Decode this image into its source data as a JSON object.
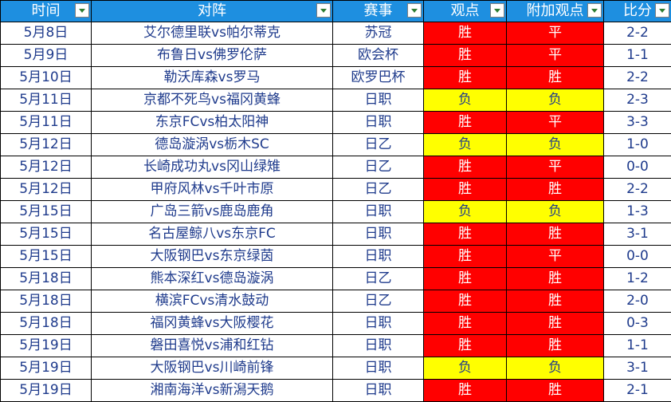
{
  "headers": [
    "时间",
    "对阵",
    "赛事",
    "观点",
    "附加观点",
    "比分"
  ],
  "colors": {
    "header_bg": "#1e8fe0",
    "win": "#ff0000",
    "loss": "#ffff00",
    "text": "#1f3b8c"
  },
  "rows": [
    [
      "5月8日",
      "艾尔德里联vs帕尔蒂克",
      "苏冠",
      "胜",
      "平",
      "2-2"
    ],
    [
      "5月9日",
      "布鲁日vs佛罗伦萨",
      "欧会杯",
      "胜",
      "平",
      "1-1"
    ],
    [
      "5月10日",
      "勒沃库森vs罗马",
      "欧罗巴杯",
      "胜",
      "胜",
      "2-2"
    ],
    [
      "5月11日",
      "京都不死鸟vs福冈黄蜂",
      "日职",
      "负",
      "负",
      "2-3"
    ],
    [
      "5月11日",
      "东京FCvs柏太阳神",
      "日职",
      "胜",
      "平",
      "3-3"
    ],
    [
      "5月12日",
      "德岛漩涡vs栃木SC",
      "日乙",
      "负",
      "负",
      "1-0"
    ],
    [
      "5月12日",
      "长崎成功丸vs冈山绿雉",
      "日乙",
      "胜",
      "平",
      "0-0"
    ],
    [
      "5月12日",
      "甲府风林vs千叶市原",
      "日乙",
      "胜",
      "胜",
      "2-2"
    ],
    [
      "5月15日",
      "广岛三箭vs鹿岛鹿角",
      "日职",
      "负",
      "负",
      "1-3"
    ],
    [
      "5月15日",
      "名古屋鲸八vs东京FC",
      "日职",
      "胜",
      "胜",
      "3-1"
    ],
    [
      "5月15日",
      "大阪钢巴vs东京绿茵",
      "日职",
      "胜",
      "平",
      "0-0"
    ],
    [
      "5月18日",
      "熊本深红vs德岛漩涡",
      "日乙",
      "胜",
      "胜",
      "1-2"
    ],
    [
      "5月18日",
      "横滨FCvs清水鼓动",
      "日乙",
      "胜",
      "胜",
      "2-0"
    ],
    [
      "5月18日",
      "福冈黄蜂vs大阪樱花",
      "日职",
      "胜",
      "胜",
      "0-3"
    ],
    [
      "5月19日",
      "磐田喜悦vs浦和红钻",
      "日职",
      "胜",
      "胜",
      "1-1"
    ],
    [
      "5月19日",
      "大阪钢巴vs川崎前锋",
      "日职",
      "负",
      "负",
      "3-1"
    ],
    [
      "5月19日",
      "湘南海洋vs新潟天鹅",
      "日职",
      "胜",
      "胜",
      "2-1"
    ]
  ]
}
